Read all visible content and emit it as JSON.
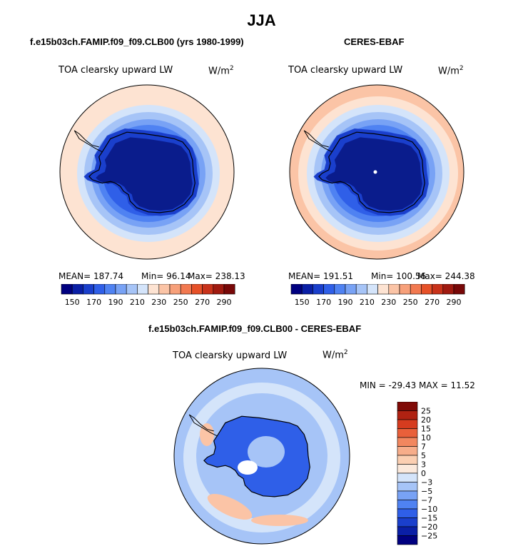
{
  "figure_title": "JJA",
  "panels": [
    {
      "title": "f.e15b03ch.FAMIP.f09_f09.CLB00 (yrs 1980-1999)",
      "field": "TOA clearsky upward LW",
      "units_base": "W/m",
      "units_exp": "2",
      "stats": {
        "mean": "MEAN= 187.74",
        "min": "Min=  96.14",
        "max": "Max= 238.13"
      }
    },
    {
      "title": "CERES-EBAF",
      "field": "TOA clearsky upward LW",
      "units_base": "W/m",
      "units_exp": "2",
      "stats": {
        "mean": "MEAN= 191.51",
        "min": "Min= 100.56",
        "max": "Max= 244.38"
      }
    },
    {
      "title": "f.e15b03ch.FAMIP.f09_f09.CLB00 - CERES-EBAF",
      "field": "TOA clearsky upward LW",
      "units_base": "W/m",
      "units_exp": "2",
      "minmax": "MIN = -29.43 MAX =  11.52"
    }
  ],
  "colorbar_abs": {
    "colors": [
      "#000080",
      "#0a1fa6",
      "#1a3fcc",
      "#2f5fe8",
      "#4f82f2",
      "#78a2f5",
      "#a6c4f7",
      "#d4e4fa",
      "#fde3d2",
      "#fbc4a6",
      "#f7a07a",
      "#f27950",
      "#e65128",
      "#c8321a",
      "#a01a10",
      "#780808"
    ],
    "labels": [
      "150",
      "170",
      "190",
      "210",
      "230",
      "250",
      "270",
      "290"
    ]
  },
  "colorbar_diff": {
    "colors": [
      "#000080",
      "#0a1fa6",
      "#1a3fcc",
      "#2f5fe8",
      "#4f82f2",
      "#78a2f5",
      "#a6c4f7",
      "#d4e4fa",
      "#fbe9dc",
      "#fbcfb2",
      "#f7ad8a",
      "#f2875f",
      "#e9603a",
      "#d63c1f",
      "#b02212",
      "#800a06"
    ],
    "labels": [
      "25",
      "20",
      "15",
      "10",
      "7",
      "5",
      "3",
      "0",
      "−3",
      "−5",
      "−7",
      "−10",
      "−15",
      "−20",
      "−25"
    ]
  },
  "map_colors": {
    "ice": "#0a1c8c",
    "ring1": "#1a3fcc",
    "ring2": "#2f5fe8",
    "ring3": "#4f82f2",
    "ring4": "#78a2f5",
    "ring5": "#a6c4f7",
    "ring6": "#d4e4fa",
    "ring7": "#fde3d2",
    "ring8": "#fbc4a6",
    "diff_bg": "#a6c4f7",
    "diff_ocean": "#d4e4fa",
    "diff_warm": "#fbc4a6",
    "diff_land": "#2f5fe8"
  }
}
